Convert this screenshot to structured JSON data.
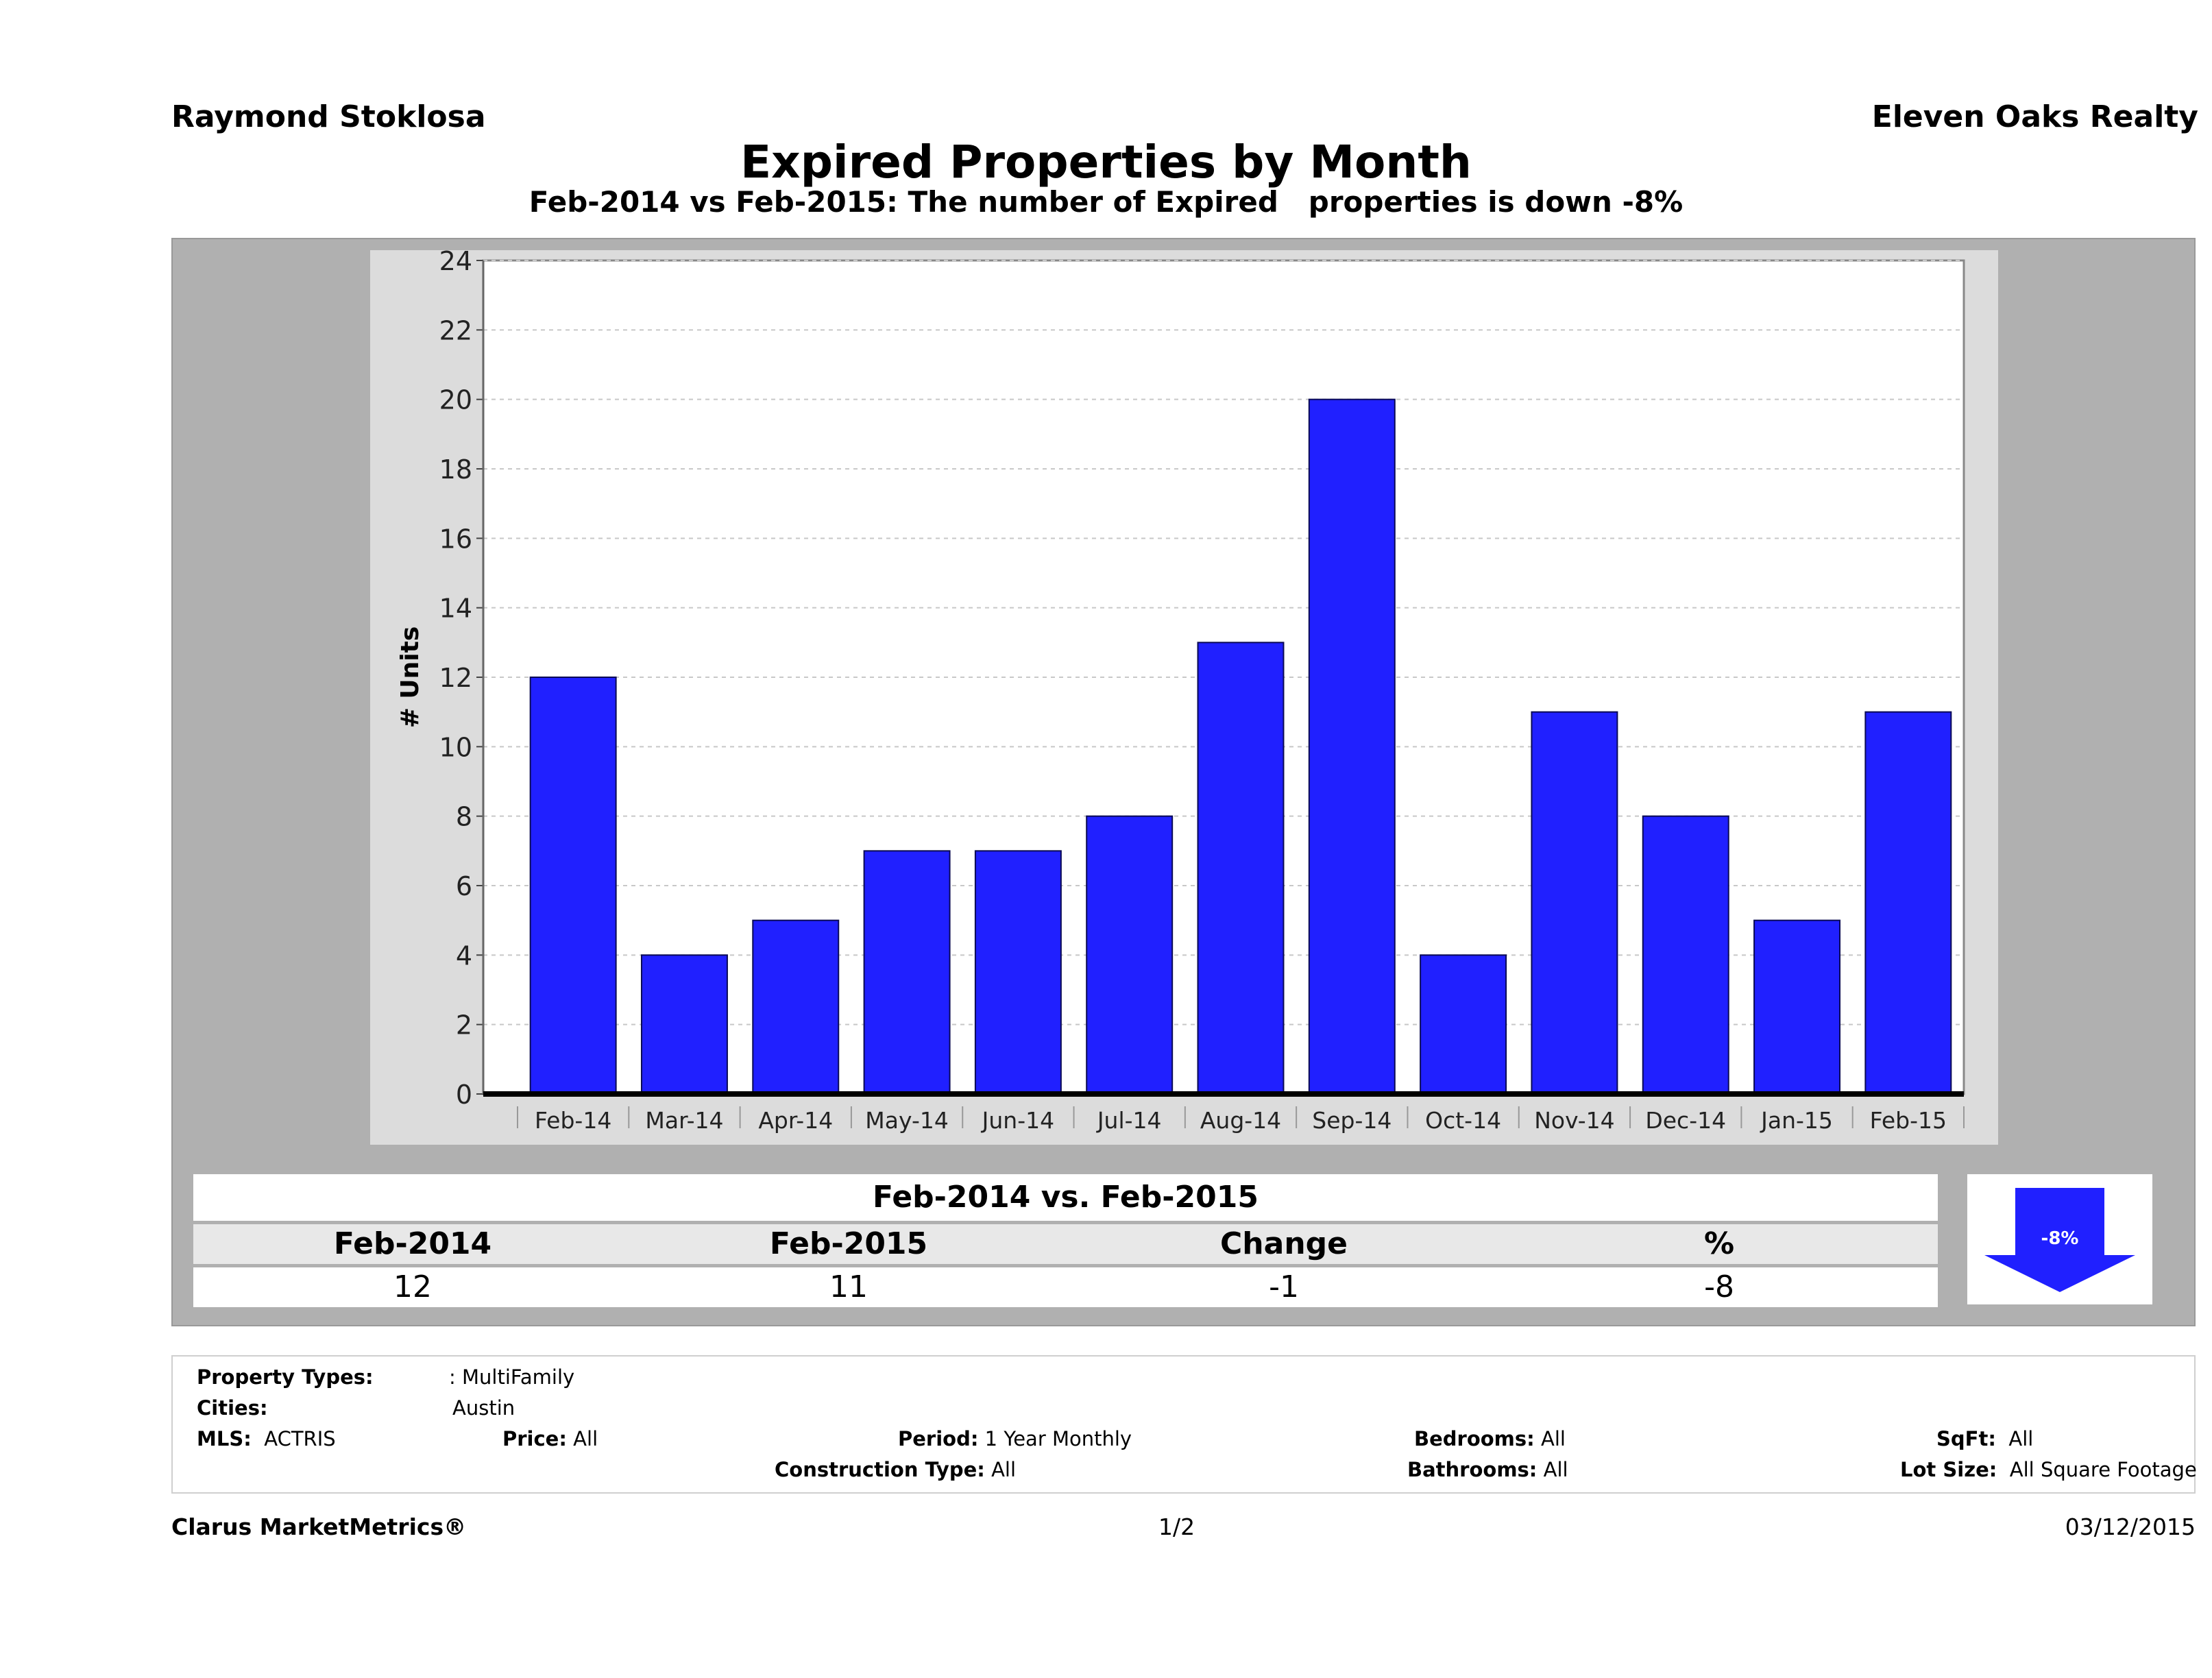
{
  "header": {
    "agent": "Raymond Stoklosa",
    "company": "Eleven Oaks Realty",
    "title": "Expired Properties by Month",
    "subtitle": "Feb-2014 vs Feb-2015: The number of Expired   properties is down -8%"
  },
  "chart_data": {
    "type": "bar",
    "title": "Expired Properties by Month",
    "ylabel": "# Units",
    "xlabel": "",
    "ylim": [
      0,
      24
    ],
    "yticks": [
      0,
      2,
      4,
      6,
      8,
      10,
      12,
      14,
      16,
      18,
      20,
      22,
      24
    ],
    "grid": true,
    "categories": [
      "Feb-14",
      "Mar-14",
      "Apr-14",
      "May-14",
      "Jun-14",
      "Jul-14",
      "Aug-14",
      "Sep-14",
      "Oct-14",
      "Nov-14",
      "Dec-14",
      "Jan-15",
      "Feb-15"
    ],
    "values": [
      12,
      4,
      5,
      7,
      7,
      8,
      13,
      20,
      4,
      11,
      8,
      5,
      11
    ],
    "bar_color": "#2020ff"
  },
  "comparison": {
    "title": "Feb-2014 vs. Feb-2015",
    "headers": [
      "Feb-2014",
      "Feb-2015",
      "Change",
      "%"
    ],
    "values": [
      "12",
      "11",
      "-1",
      "-8"
    ],
    "badge": "-8%",
    "badge_color": "#2020ff"
  },
  "filters": {
    "property_types_label": "Property Types:",
    "property_types_value": ": MultiFamily",
    "cities_label": "Cities:",
    "cities_value": "Austin",
    "mls_label": "MLS:",
    "mls_value": "ACTRIS",
    "price_label": "Price:",
    "price_value": "All",
    "period_label": "Period:",
    "period_value": "1 Year Monthly",
    "construction_label": "Construction Type:",
    "construction_value": "All",
    "bedrooms_label": "Bedrooms:",
    "bedrooms_value": "All",
    "bathrooms_label": "Bathrooms:",
    "bathrooms_value": "All",
    "sqft_label": "SqFt:",
    "sqft_value": "All",
    "lot_label": "Lot Size:",
    "lot_value": "All Square Footage"
  },
  "footer": {
    "brand": "Clarus MarketMetrics®",
    "page": "1/2",
    "date": "03/12/2015"
  }
}
